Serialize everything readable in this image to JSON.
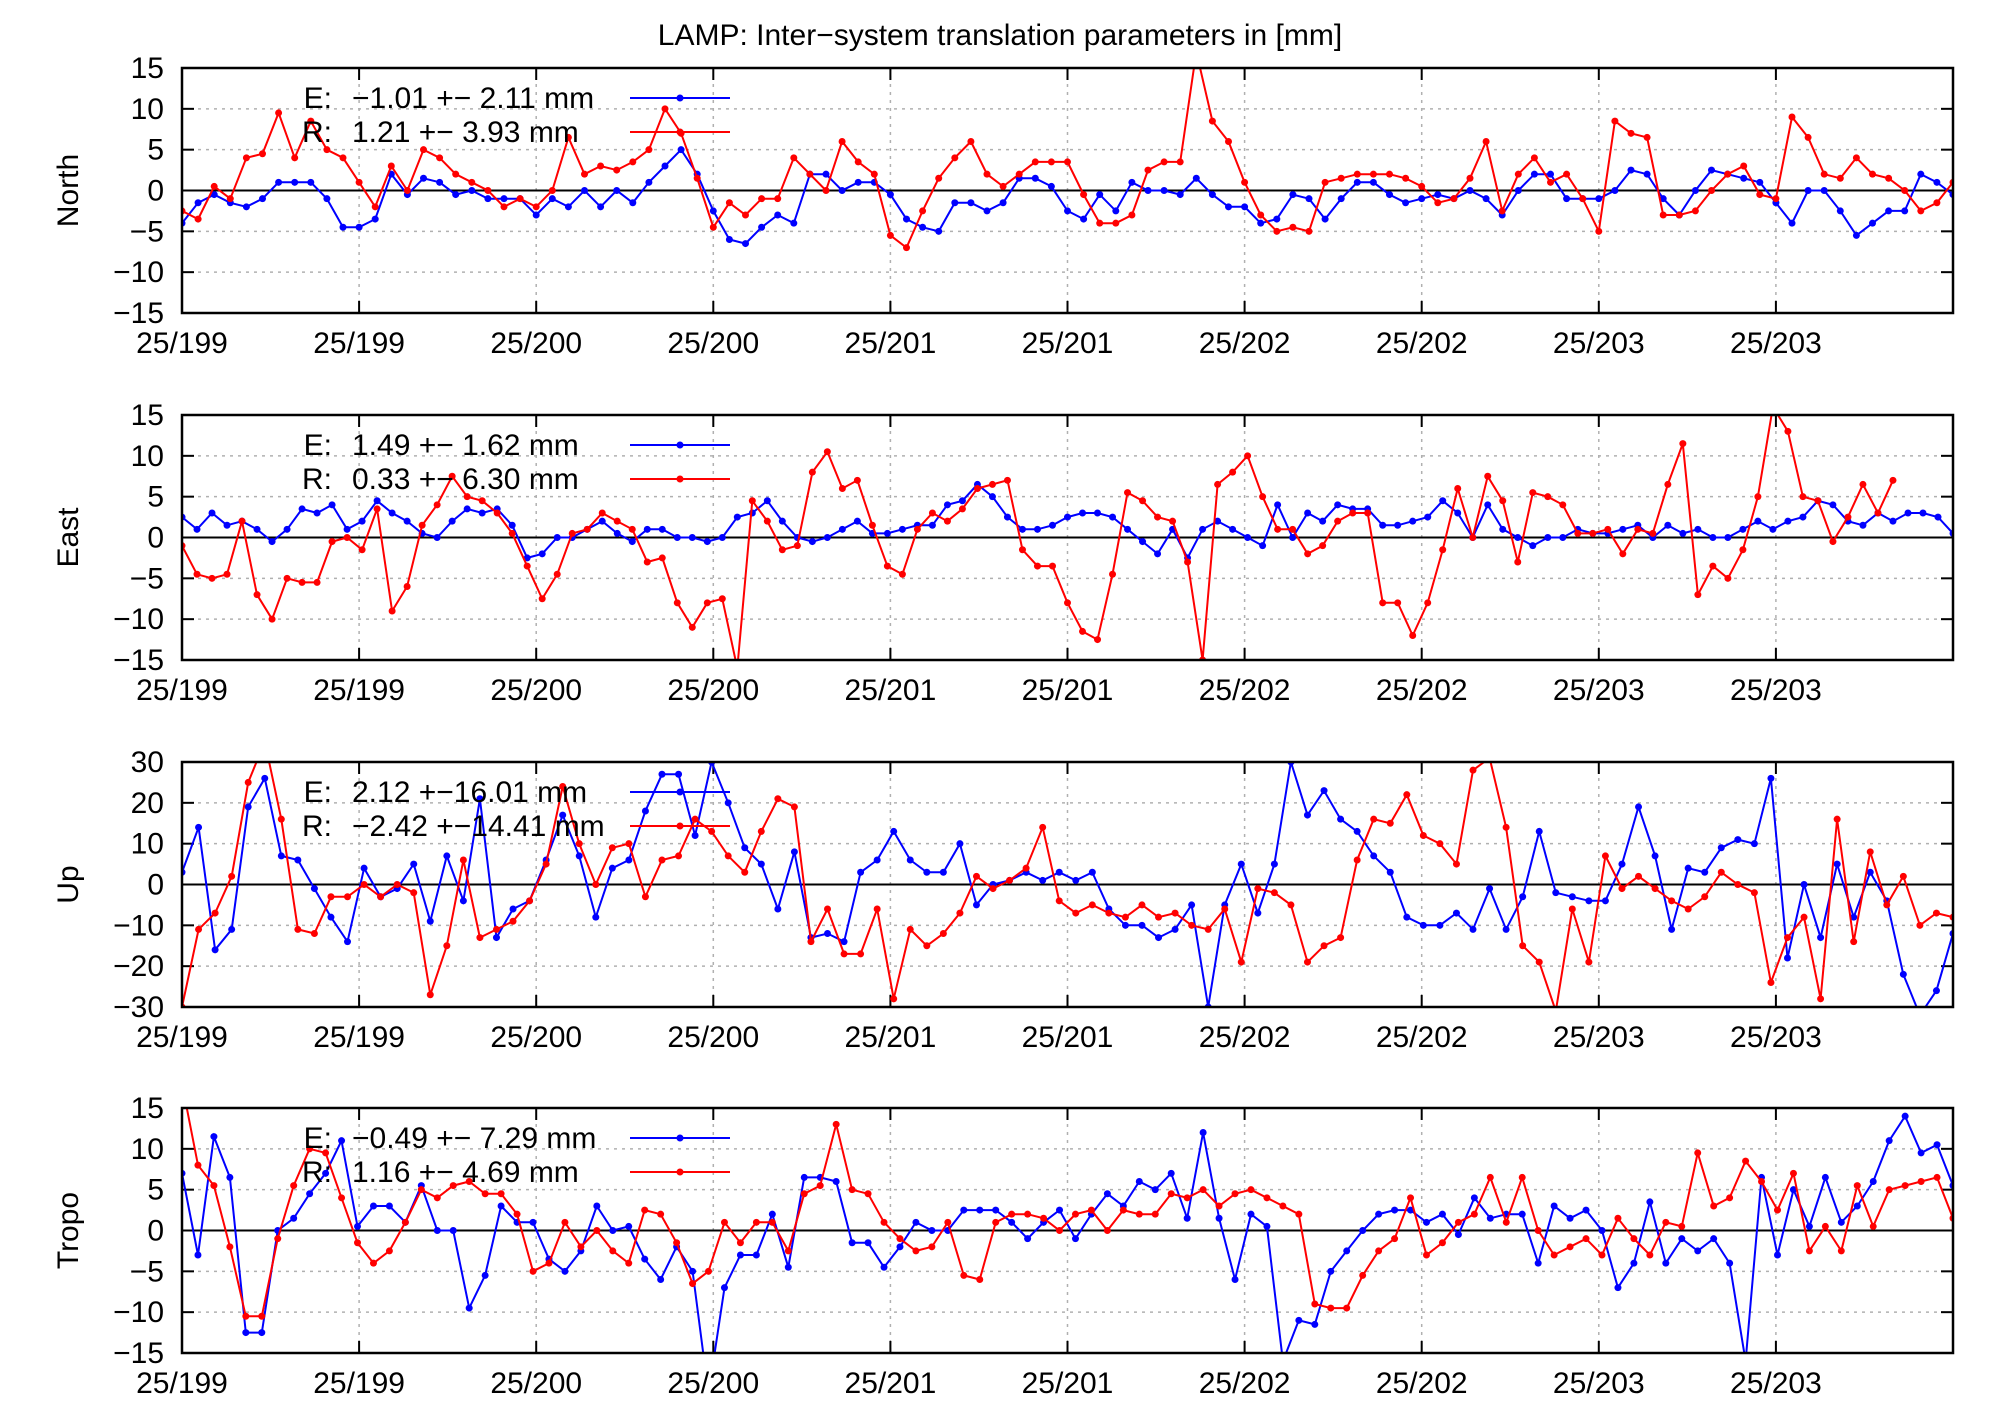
{
  "chart_data": {
    "type": "line",
    "title": "LAMP: Inter−system translation parameters in [mm]",
    "x_tick_labels": [
      "25/199",
      "25/199",
      "25/200",
      "25/200",
      "25/201",
      "25/201",
      "25/202",
      "25/202",
      "25/203",
      "25/203"
    ],
    "colors": {
      "E": "#0000ff",
      "R": "#ff0000",
      "grid": "#b0b0b0",
      "zero": "#000000"
    },
    "panels": [
      {
        "ylabel": "North",
        "ylim": [
          -15,
          15
        ],
        "yticks": [
          -15,
          -10,
          -5,
          0,
          5,
          10,
          15
        ],
        "series": [
          {
            "name": "E:",
            "legend": "−1.01 +− 2.11 mm",
            "values": [
              -4,
              -1.5,
              -0.5,
              -1.5,
              -2,
              -1,
              1,
              1,
              1,
              -1,
              -4.5,
              -4.5,
              -3.5,
              2,
              -0.5,
              1.5,
              1,
              -0.5,
              0,
              -1,
              -1,
              -1,
              -3,
              -1,
              -2,
              0,
              -2,
              0,
              -1.5,
              1,
              3,
              5,
              2,
              -2.5,
              -6,
              -6.5,
              -4.5,
              -3,
              -4,
              2,
              2,
              0,
              1,
              1,
              -0.5,
              -3.5,
              -4.5,
              -5,
              -1.5,
              -1.5,
              -2.5,
              -1.5,
              1.5,
              1.5,
              0.5,
              -2.5,
              -3.5,
              -0.5,
              -2.5,
              1,
              0,
              0,
              -0.5,
              1.5,
              -0.5,
              -2,
              -2,
              -4,
              -3.5,
              -0.5,
              -1,
              -3.5,
              -1,
              1,
              1,
              -0.5,
              -1.5,
              -1,
              -0.5,
              -1,
              0,
              -1,
              -3,
              0,
              2,
              2,
              -1,
              -1,
              -1,
              0,
              2.5,
              2,
              -1,
              -3,
              0,
              2.5,
              2,
              1.5,
              1,
              -1.5,
              -4,
              0,
              0,
              -2.5,
              -5.5,
              -4,
              -2.5,
              -2.5,
              2,
              1,
              -0.5
            ]
          },
          {
            "name": "R:",
            "legend": "1.21 +− 3.93 mm",
            "values": [
              -2.5,
              -3.5,
              0.5,
              -1,
              4,
              4.5,
              9.5,
              4,
              8.5,
              5,
              4,
              1,
              -2,
              3,
              0,
              5,
              4,
              2,
              1,
              0,
              -2,
              -1,
              -2,
              0,
              6.5,
              2,
              3,
              2.5,
              3.5,
              5,
              10,
              7,
              1.5,
              -4.5,
              -1.5,
              -3,
              -1,
              -1,
              4,
              2,
              0,
              6,
              3.5,
              2,
              -5.5,
              -7,
              -2.5,
              1.5,
              4,
              6,
              2,
              0.5,
              2,
              3.5,
              3.5,
              3.5,
              -0.5,
              -4,
              -4,
              -3,
              2.5,
              3.5,
              3.5,
              17,
              8.5,
              6,
              1,
              -3,
              -5,
              -4.5,
              -5,
              1,
              1.5,
              2,
              2,
              2,
              1.5,
              0.5,
              -1.5,
              -1,
              1.5,
              6,
              -2.5,
              2,
              4,
              1,
              2,
              -1,
              -5,
              8.5,
              7,
              6.5,
              -3,
              -3,
              -2.5,
              0,
              2,
              3,
              -0.5,
              -1,
              9,
              6.5,
              2,
              1.5,
              4,
              2,
              1.5,
              0,
              -2.5,
              -1.5,
              1,
              -1.5,
              -0.5,
              -3,
              -6
            ]
          }
        ]
      },
      {
        "ylabel": "East",
        "ylim": [
          -15,
          15
        ],
        "yticks": [
          -15,
          -10,
          -5,
          0,
          5,
          10,
          15
        ],
        "series": [
          {
            "name": "E:",
            "legend": "1.49 +− 1.62 mm",
            "values": [
              2.5,
              1,
              3,
              1.5,
              2,
              1,
              -0.5,
              1,
              3.5,
              3,
              4,
              1,
              2,
              4.5,
              3,
              2,
              0.5,
              0,
              2,
              3.5,
              3,
              3.5,
              1.5,
              -2.5,
              -2,
              0,
              0,
              1,
              2,
              0.5,
              -0.5,
              1,
              1,
              0,
              0,
              -0.5,
              0,
              2.5,
              3,
              4.5,
              2,
              0,
              -0.5,
              0,
              1,
              2,
              0.5,
              0.5,
              1,
              1.5,
              1.5,
              4,
              4.5,
              6.5,
              5,
              2.5,
              1,
              1,
              1.5,
              2.5,
              3,
              3,
              2.5,
              1,
              -0.5,
              -2,
              1,
              -2.5,
              1,
              2,
              1,
              0,
              -1,
              4,
              0,
              3,
              2,
              4,
              3.5,
              3.5,
              1.5,
              1.5,
              2,
              2.5,
              4.5,
              3,
              0,
              4,
              1,
              0,
              -1,
              0,
              0,
              1,
              0.5,
              0.5,
              1,
              1.5,
              0,
              1.5,
              0.5,
              1,
              0,
              0,
              1,
              2,
              1,
              2,
              2.5,
              4.5,
              4,
              2,
              1.5,
              3,
              2,
              3,
              3,
              2.5,
              0.5
            ]
          },
          {
            "name": "R:",
            "legend": "0.33 +− 6.30 mm",
            "values": [
              -1,
              -4.5,
              -5,
              -4.5,
              2,
              -7,
              -10,
              -5,
              -5.5,
              -5.5,
              -0.5,
              0,
              -1.5,
              3.5,
              -9,
              -6,
              1.5,
              4,
              7.5,
              5,
              4.5,
              3,
              0.5,
              -3.5,
              -7.5,
              -4.5,
              0.5,
              1,
              3,
              2,
              1,
              -3,
              -2.5,
              -8,
              -11,
              -8,
              -7.5,
              -16,
              4.5,
              2,
              -1.5,
              -1,
              8,
              10.5,
              6,
              7,
              1.5,
              -3.5,
              -4.5,
              1,
              3,
              2,
              3.5,
              6,
              6.5,
              7,
              -1.5,
              -3.5,
              -3.5,
              -8,
              -11.5,
              -12.5,
              -4.5,
              5.5,
              4.5,
              2.5,
              2,
              -3,
              -15,
              6.5,
              8,
              10,
              5,
              1,
              1,
              -2,
              -1,
              2,
              3,
              3,
              -8,
              -8,
              -12,
              -8,
              -1.5,
              6,
              0,
              7.5,
              4.5,
              -3,
              5.5,
              5,
              4,
              0.5,
              0.5,
              1,
              -2,
              1,
              0.5,
              6.5,
              11.5,
              -7,
              -3.5,
              -5,
              -1.5,
              5,
              16,
              13,
              5,
              4.5,
              -0.5,
              2.5,
              6.5,
              3,
              7
            ]
          }
        ]
      },
      {
        "ylabel": "Up",
        "ylim": [
          -30,
          30
        ],
        "yticks": [
          -30,
          -20,
          -10,
          0,
          10,
          20,
          30
        ],
        "series": [
          {
            "name": "E:",
            "legend": "2.12 +−16.01 mm",
            "values": [
              3,
              14,
              -16,
              -11,
              19,
              26,
              7,
              6,
              -1,
              -8,
              -14,
              4,
              -3,
              -1,
              5,
              -9,
              7,
              -4,
              21,
              -13,
              -6,
              -4,
              6,
              17,
              7,
              -8,
              4,
              6,
              18,
              27,
              27,
              12,
              30,
              20,
              9,
              5,
              -6,
              8,
              -13,
              -12,
              -14,
              3,
              6,
              13,
              6,
              3,
              3,
              10,
              -5,
              0,
              1,
              3,
              1,
              3,
              1,
              3,
              -6,
              -10,
              -10,
              -13,
              -11,
              -5,
              -30,
              -5,
              5,
              -7,
              5,
              30,
              17,
              23,
              16,
              13,
              7,
              3,
              -8,
              -10,
              -10,
              -7,
              -11,
              -1,
              -11,
              -3,
              13,
              -2,
              -3,
              -4,
              -4,
              5,
              19,
              7,
              -11,
              4,
              3,
              9,
              11,
              10,
              26,
              -18,
              0,
              -13,
              5,
              -8,
              3,
              -4,
              -22,
              -32,
              -26,
              -12
            ]
          },
          {
            "name": "R:",
            "legend": "−2.42 +−14.41 mm",
            "values": [
              -30,
              -11,
              -7,
              2,
              25,
              35,
              16,
              -11,
              -12,
              -3,
              -3,
              0,
              -3,
              0,
              -2,
              -27,
              -15,
              6,
              -13,
              -11,
              -9,
              -4,
              5,
              24,
              10,
              0,
              9,
              10,
              -3,
              6,
              7,
              16,
              13,
              7,
              3,
              13,
              21,
              19,
              -14,
              -6,
              -17,
              -17,
              -6,
              -28,
              -11,
              -15,
              -12,
              -7,
              2,
              -1,
              1,
              4,
              14,
              -4,
              -7,
              -5,
              -7,
              -8,
              -5,
              -8,
              -7,
              -10,
              -11,
              -6,
              -19,
              -1,
              -2,
              -5,
              -19,
              -15,
              -13,
              6,
              16,
              15,
              22,
              12,
              10,
              5,
              28,
              31,
              14,
              -15,
              -19,
              -31,
              -6,
              -19,
              7,
              -1,
              2,
              -1,
              -4,
              -6,
              -3,
              3,
              0,
              -2,
              -24,
              -13,
              -8,
              -28,
              16,
              -14,
              8,
              -5,
              2,
              -10,
              -7,
              -8,
              -14,
              -3,
              -8,
              -10,
              -8,
              -6
            ]
          }
        ]
      },
      {
        "ylabel": "Tropo",
        "ylim": [
          -15,
          15
        ],
        "yticks": [
          -15,
          -10,
          -5,
          0,
          5,
          10,
          15
        ],
        "series": [
          {
            "name": "E:",
            "legend": "−0.49 +− 7.29 mm",
            "values": [
              7,
              -3,
              11.5,
              6.5,
              -12.5,
              -12.5,
              0,
              1.5,
              4.5,
              7,
              11,
              0.5,
              3,
              3,
              1,
              5.5,
              0,
              0,
              -9.5,
              -5.5,
              3,
              1,
              1,
              -3.5,
              -5,
              -2.5,
              3,
              0,
              0.5,
              -3.5,
              -6,
              -2,
              -5,
              -20,
              -7,
              -3,
              -3,
              2,
              -4.5,
              6.5,
              6.5,
              6,
              -1.5,
              -1.5,
              -4.5,
              -2,
              1,
              0,
              0,
              2.5,
              2.5,
              2.5,
              1,
              -1,
              1,
              2.5,
              -1,
              2,
              4.5,
              3,
              6,
              5,
              7,
              1.5,
              12,
              1.5,
              -6,
              2,
              0.5,
              -16,
              -11,
              -11.5,
              -5,
              -2.5,
              0,
              2,
              2.5,
              2.5,
              1,
              2,
              -0.5,
              4,
              1.5,
              2,
              2,
              -4,
              3,
              1.5,
              2.5,
              0,
              -7,
              -4,
              3.5,
              -4,
              -1,
              -2.5,
              -1,
              -4,
              -16,
              6.5,
              -3,
              5,
              0.5,
              6.5,
              1,
              3,
              6,
              11,
              14,
              9.5,
              10.5,
              5.5
            ]
          },
          {
            "name": "R:",
            "legend": "1.16 +− 4.69 mm",
            "values": [
              18,
              8,
              5.5,
              -2,
              -10.5,
              -10.5,
              -1,
              5.5,
              10,
              9.5,
              4,
              -1.5,
              -4,
              -2.5,
              1,
              5,
              4,
              5.5,
              6,
              4.5,
              4.5,
              2,
              -5,
              -4,
              1,
              -2,
              0,
              -2.5,
              -4,
              2.5,
              2,
              -1.5,
              -6.5,
              -5,
              1,
              -1.5,
              1,
              1,
              -2.5,
              4.5,
              5.5,
              13,
              5,
              4.5,
              1,
              -1,
              -2.5,
              -2,
              1,
              -5.5,
              -6,
              1,
              2,
              2,
              1.5,
              0,
              2,
              2.5,
              0,
              2.5,
              2,
              2,
              4.5,
              4,
              5,
              3,
              4.5,
              5,
              4,
              3,
              2,
              -9,
              -9.5,
              -9.5,
              -5.5,
              -2.5,
              -1,
              4,
              -3,
              -1.5,
              1,
              2,
              6.5,
              1,
              6.5,
              0,
              -3,
              -2,
              -1,
              -3,
              1.5,
              -1,
              -3,
              1,
              0.5,
              9.5,
              3,
              4,
              8.5,
              6,
              2.5,
              7,
              -2.5,
              0.5,
              -2.5,
              5.5,
              0.5,
              5,
              5.5,
              6,
              6.5,
              1.5,
              1.5,
              3.5
            ]
          }
        ]
      }
    ],
    "grid": "dotted",
    "legend_position": "top-left"
  }
}
